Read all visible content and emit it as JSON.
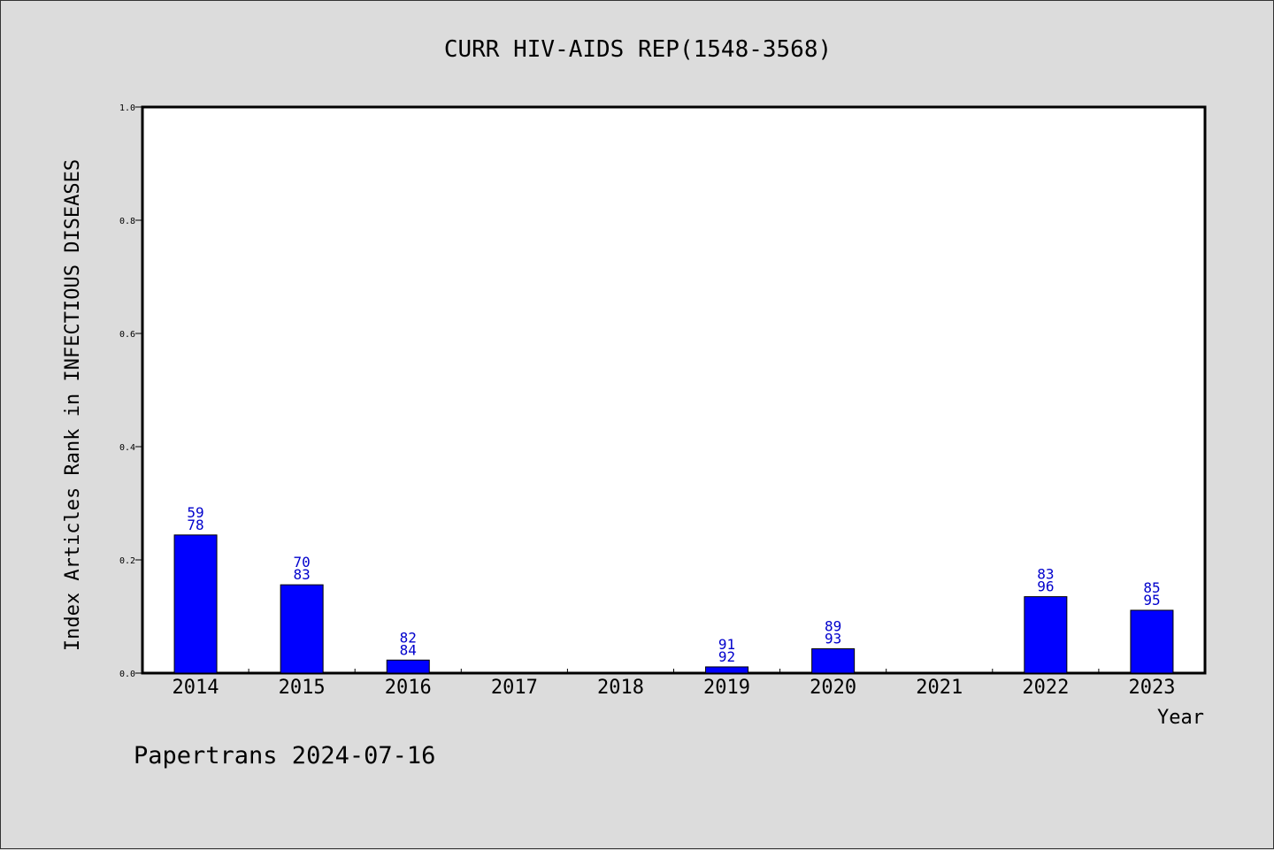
{
  "chart_data": {
    "type": "bar",
    "title": "CURR HIV-AIDS REP(1548-3568)",
    "xlabel": "Year",
    "ylabel": "Index Articles Rank in INFECTIOUS DISEASES",
    "ylim": [
      0,
      1.0
    ],
    "yticks": [
      "0.0",
      "0.2",
      "0.4",
      "0.6",
      "0.8",
      "1.0"
    ],
    "categories": [
      "2014",
      "2015",
      "2016",
      "2017",
      "2018",
      "2019",
      "2020",
      "2021",
      "2022",
      "2023"
    ],
    "values": [
      0.244,
      0.156,
      0.023,
      null,
      null,
      0.011,
      0.043,
      null,
      0.135,
      0.111
    ],
    "bar_labels_top": [
      "59",
      "70",
      "82",
      "",
      "",
      "91",
      "89",
      "",
      "83",
      "85"
    ],
    "bar_labels_bottom": [
      "78",
      "83",
      "84",
      "",
      "",
      "92",
      "93",
      "",
      "96",
      "95"
    ],
    "grid": false,
    "colors": {
      "bar": "#0000ff",
      "bar_label": "#0000cc",
      "background": "#dcdcdc",
      "plot_bg": "#ffffff"
    }
  },
  "footer": "Papertrans 2024-07-16"
}
